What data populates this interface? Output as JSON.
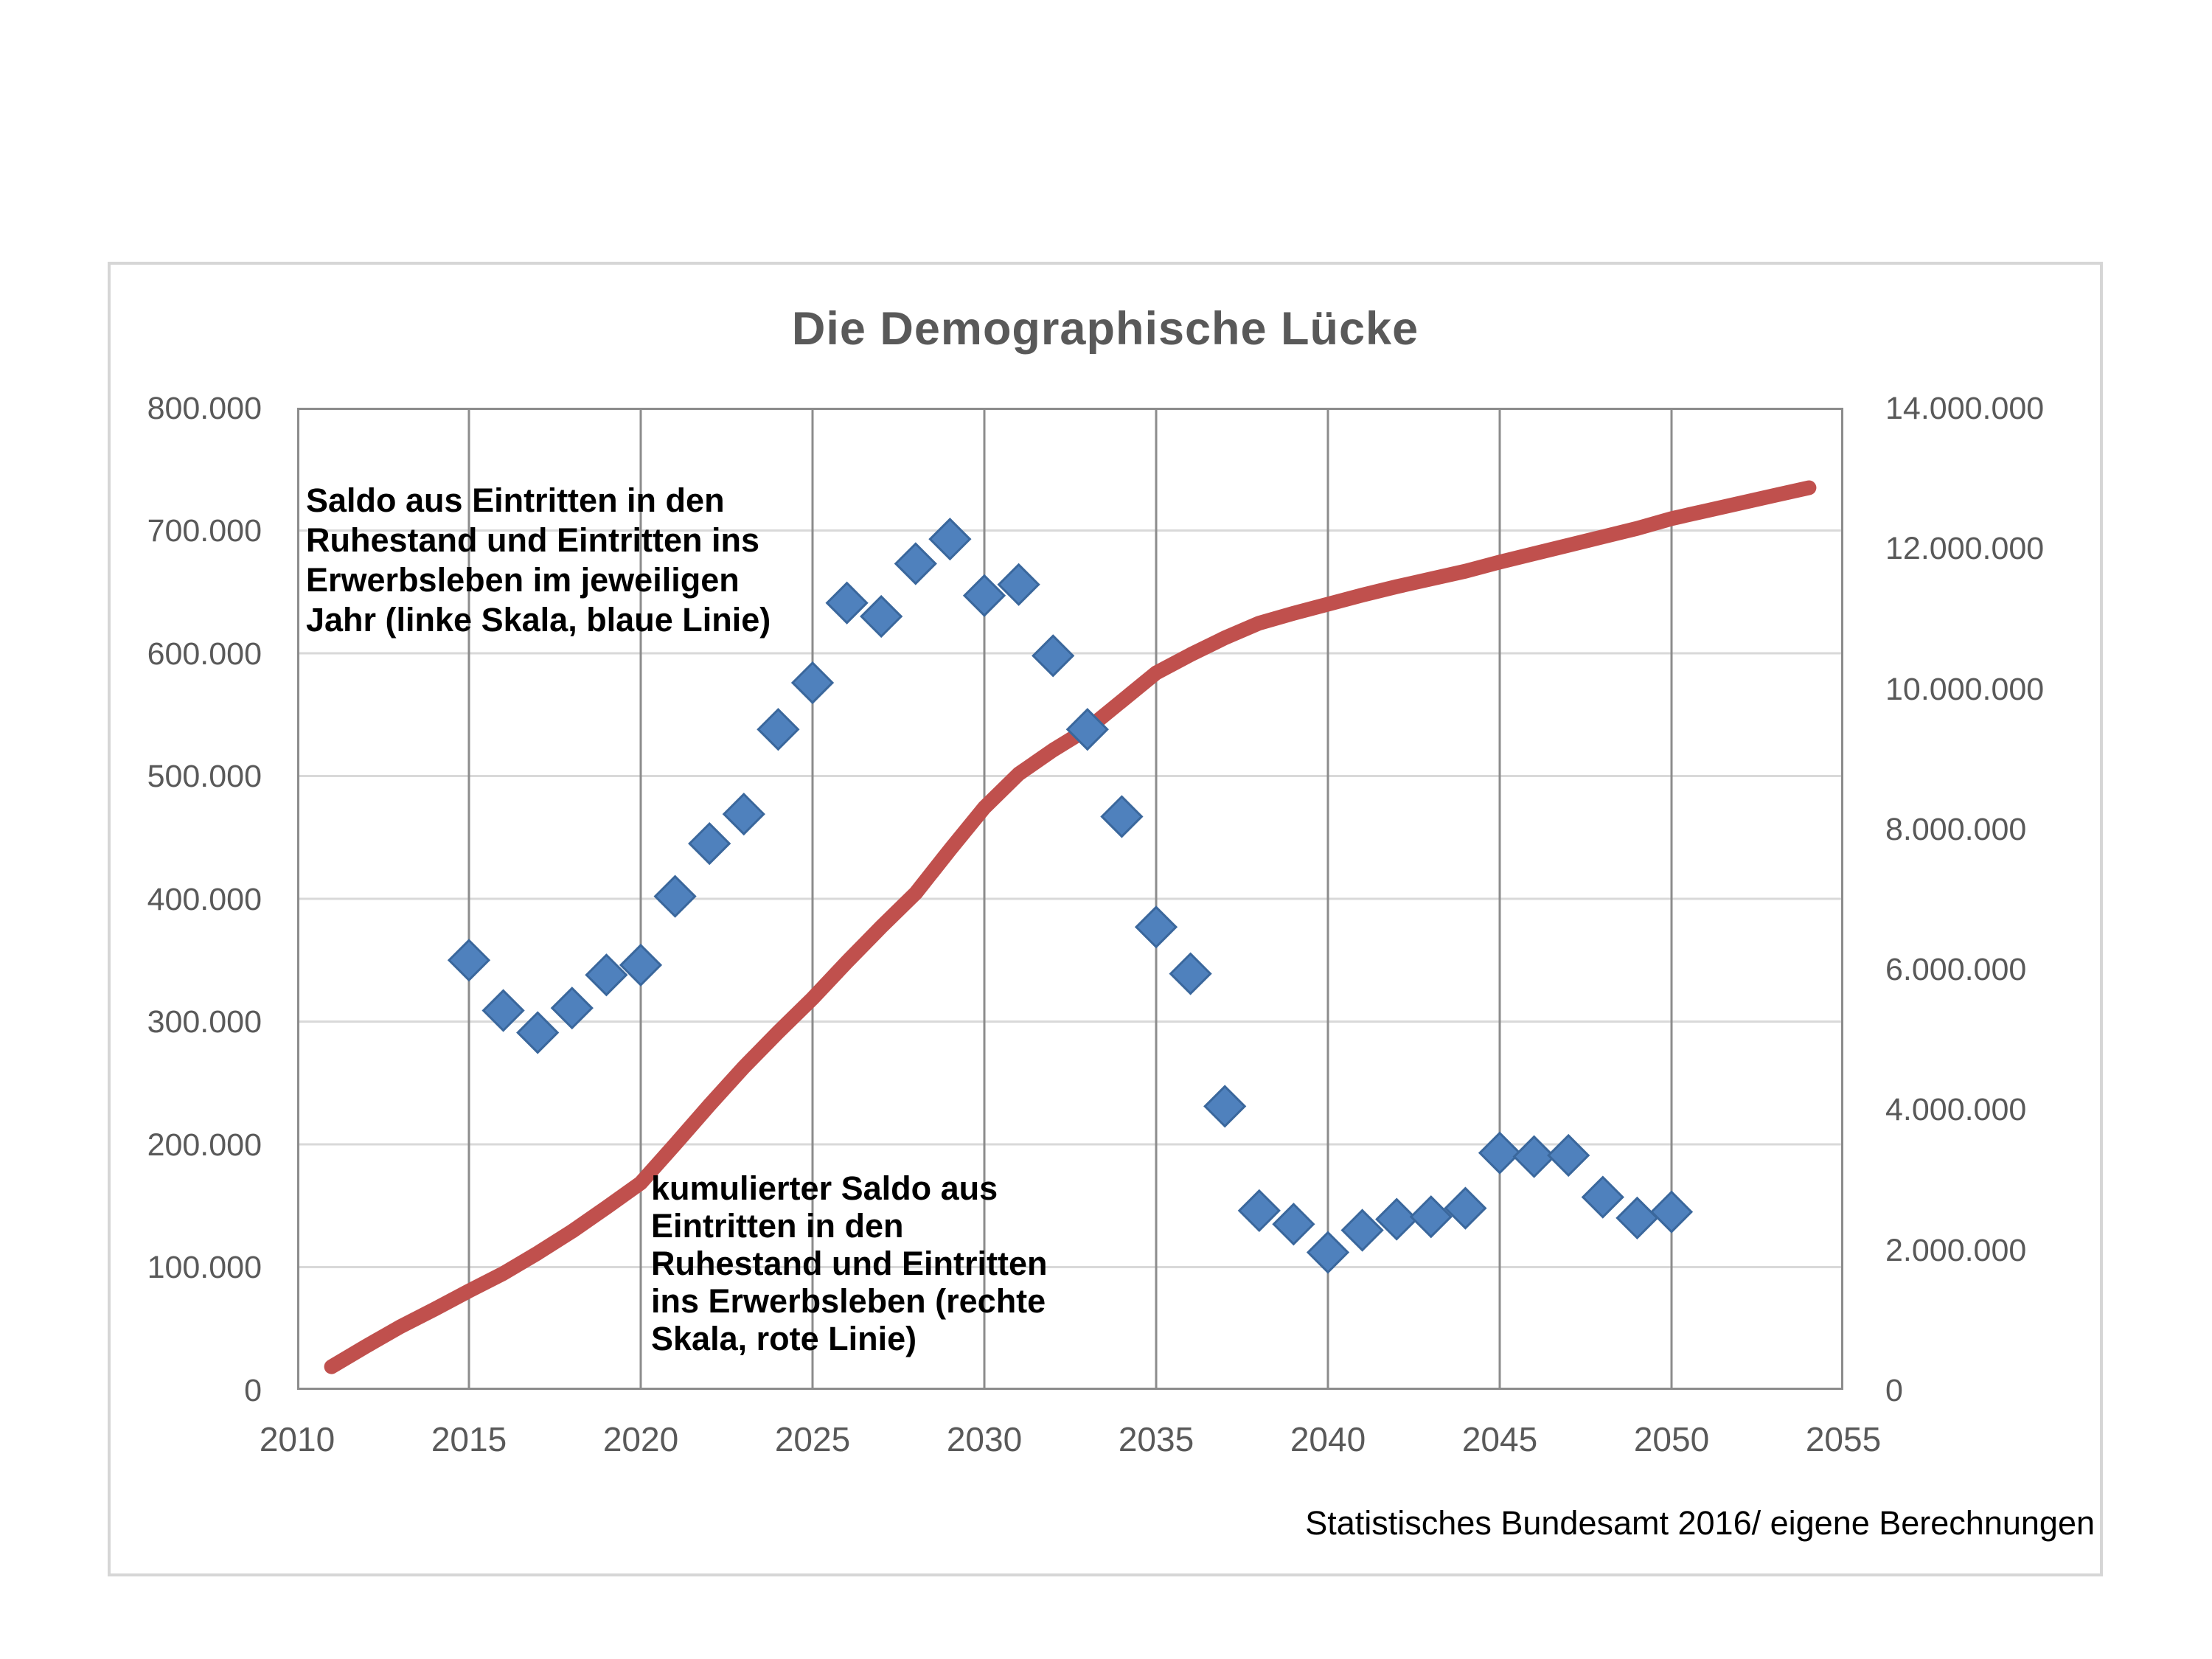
{
  "title": "Die Demographische Lücke",
  "source": "Statistisches Bundesamt 2016/ eigene Berechnungen",
  "annotations": {
    "blue": "Saldo aus Eintritten in den\nRuhestand und Eintritten ins\nErwerbsleben im jeweiligen\nJahr (linke Skala, blaue Linie)",
    "red": "kumulierter Saldo aus\nEintritten in den\nRuhestand und Eintritten\nins Erwerbsleben (rechte\nSkala, rote Linie)"
  },
  "axes": {
    "left": {
      "labels": [
        "800.000",
        "700.000",
        "600.000",
        "500.000",
        "400.000",
        "300.000",
        "200.000",
        "100.000",
        "0"
      ]
    },
    "right": {
      "labels": [
        "14.000.000",
        "12.000.000",
        "10.000.000",
        "8.000.000",
        "6.000.000",
        "4.000.000",
        "2.000.000",
        "0"
      ]
    },
    "x": {
      "labels": [
        "2010",
        "2015",
        "2020",
        "2025",
        "2030",
        "2035",
        "2040",
        "2045",
        "2050",
        "2055"
      ]
    }
  },
  "colors": {
    "blue": "#4F81BD",
    "blue_edge": "#3A679C",
    "red": "#C0504D",
    "grid_light": "#D9D9D9",
    "grid_dark": "#8C8C8C",
    "axis_text": "#595959"
  },
  "chart_data": {
    "type": "combo",
    "title": "Die Demographische Lücke",
    "x_range": [
      2010,
      2055
    ],
    "x_tick_step": 5,
    "left_axis": {
      "min": 0,
      "max": 800000,
      "step": 100000
    },
    "right_axis": {
      "min": 0,
      "max": 14000000,
      "step": 2000000
    },
    "grid": {
      "horizontal": "left-axis 100.000 steps, light",
      "vertical": "5-year steps, dark"
    },
    "legend_position": "none (text annotations inside plot)",
    "series": [
      {
        "name": "Saldo aus Eintritten in den Ruhestand und Eintritten ins Erwerbsleben im jeweiligen Jahr (linke Skala, blaue Linie)",
        "type": "scatter",
        "marker": "diamond",
        "axis": "left",
        "points": [
          [
            2015,
            350000
          ],
          [
            2016,
            309000
          ],
          [
            2017,
            291000
          ],
          [
            2018,
            311000
          ],
          [
            2019,
            338000
          ],
          [
            2020,
            346000
          ],
          [
            2021,
            402000
          ],
          [
            2022,
            445000
          ],
          [
            2023,
            469000
          ],
          [
            2024,
            538000
          ],
          [
            2025,
            576000
          ],
          [
            2026,
            641000
          ],
          [
            2027,
            630000
          ],
          [
            2028,
            673000
          ],
          [
            2029,
            693000
          ],
          [
            2030,
            647000
          ],
          [
            2031,
            656000
          ],
          [
            2032,
            598000
          ],
          [
            2033,
            538000
          ],
          [
            2034,
            467000
          ],
          [
            2035,
            377000
          ],
          [
            2036,
            339000
          ],
          [
            2037,
            231000
          ],
          [
            2038,
            146000
          ],
          [
            2039,
            135000
          ],
          [
            2040,
            112000
          ],
          [
            2041,
            130000
          ],
          [
            2042,
            139000
          ],
          [
            2043,
            141000
          ],
          [
            2044,
            148000
          ],
          [
            2045,
            193000
          ],
          [
            2046,
            190000
          ],
          [
            2047,
            191000
          ],
          [
            2048,
            157000
          ],
          [
            2049,
            140000
          ],
          [
            2050,
            145000
          ]
        ]
      },
      {
        "name": "kumulierter Saldo aus Eintritten in den Ruhestand und Eintritten ins Erwerbsleben (rechte Skala, rote Linie)",
        "type": "line",
        "axis": "right",
        "points": [
          [
            2011,
            330000
          ],
          [
            2012,
            620000
          ],
          [
            2013,
            900000
          ],
          [
            2014,
            1150000
          ],
          [
            2015,
            1410000
          ],
          [
            2016,
            1660000
          ],
          [
            2017,
            1950000
          ],
          [
            2018,
            2260000
          ],
          [
            2019,
            2600000
          ],
          [
            2020,
            2950000
          ],
          [
            2021,
            3500000
          ],
          [
            2022,
            4060000
          ],
          [
            2023,
            4600000
          ],
          [
            2024,
            5100000
          ],
          [
            2025,
            5580000
          ],
          [
            2026,
            6100000
          ],
          [
            2027,
            6600000
          ],
          [
            2028,
            7080000
          ],
          [
            2029,
            7700000
          ],
          [
            2030,
            8300000
          ],
          [
            2031,
            8780000
          ],
          [
            2032,
            9120000
          ],
          [
            2033,
            9420000
          ],
          [
            2034,
            9820000
          ],
          [
            2035,
            10220000
          ],
          [
            2036,
            10480000
          ],
          [
            2037,
            10720000
          ],
          [
            2038,
            10930000
          ],
          [
            2039,
            11070000
          ],
          [
            2040,
            11200000
          ],
          [
            2041,
            11330000
          ],
          [
            2042,
            11450000
          ],
          [
            2043,
            11560000
          ],
          [
            2044,
            11670000
          ],
          [
            2045,
            11800000
          ],
          [
            2046,
            11920000
          ],
          [
            2047,
            12040000
          ],
          [
            2048,
            12160000
          ],
          [
            2049,
            12280000
          ],
          [
            2050,
            12420000
          ],
          [
            2051,
            12530000
          ],
          [
            2052,
            12640000
          ],
          [
            2053,
            12750000
          ],
          [
            2054,
            12860000
          ]
        ]
      }
    ]
  }
}
